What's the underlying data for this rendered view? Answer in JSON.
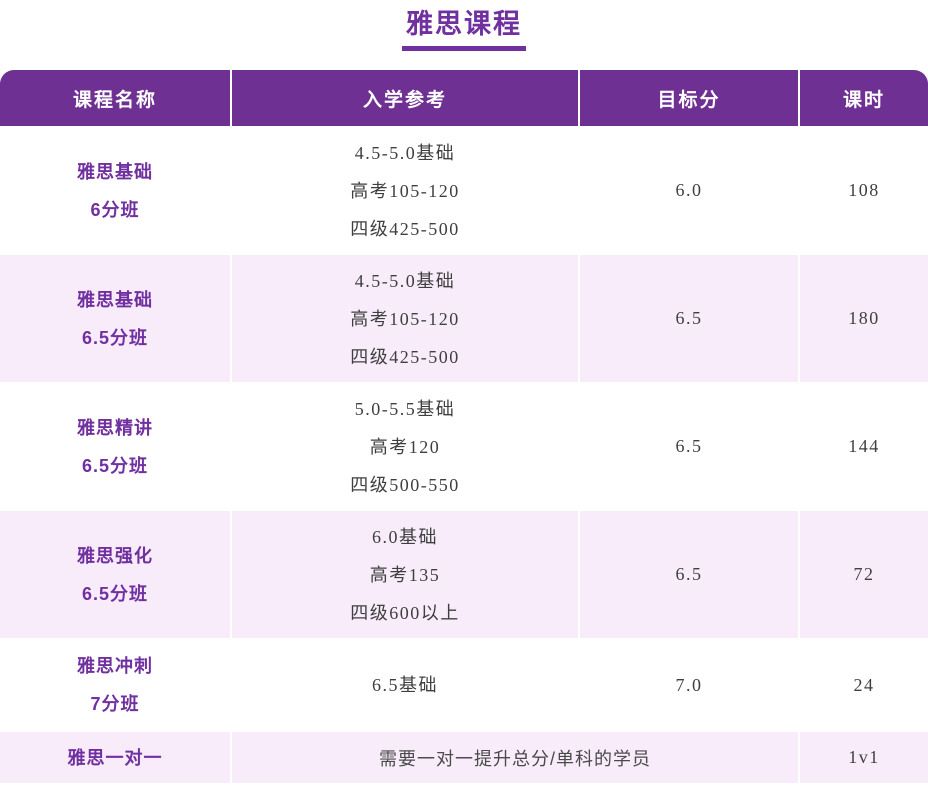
{
  "page": {
    "title": "雅思课程"
  },
  "colors": {
    "header_bg": "#6e3092",
    "accent_purple": "#7030a0",
    "alt_row_bg": "#f8ecfb",
    "body_text": "#3f3f3f",
    "header_text": "#ffffff"
  },
  "table": {
    "headers": {
      "course_name": "课程名称",
      "entry_reference": "入学参考",
      "target_score": "目标分",
      "hours": "课时"
    },
    "rows": [
      {
        "course": [
          "雅思基础",
          "6分班"
        ],
        "entry": [
          "4.5-5.0基础",
          "高考105-120",
          "四级425-500"
        ],
        "target": "6.0",
        "hours": "108"
      },
      {
        "course": [
          "雅思基础",
          "6.5分班"
        ],
        "entry": [
          "4.5-5.0基础",
          "高考105-120",
          "四级425-500"
        ],
        "target": "6.5",
        "hours": "180"
      },
      {
        "course": [
          "雅思精讲",
          "6.5分班"
        ],
        "entry": [
          "5.0-5.5基础",
          "高考120",
          "四级500-550"
        ],
        "target": "6.5",
        "hours": "144"
      },
      {
        "course": [
          "雅思强化",
          "6.5分班"
        ],
        "entry": [
          "6.0基础",
          "高考135",
          "四级600以上"
        ],
        "target": "6.5",
        "hours": "72"
      },
      {
        "course": [
          "雅思冲刺",
          "7分班"
        ],
        "entry": [
          "6.5基础"
        ],
        "target": "7.0",
        "hours": "24"
      },
      {
        "course": [
          "雅思一对一"
        ],
        "entry_merged": "需要一对一提升总分/单科的学员",
        "hours": "1v1"
      }
    ]
  }
}
